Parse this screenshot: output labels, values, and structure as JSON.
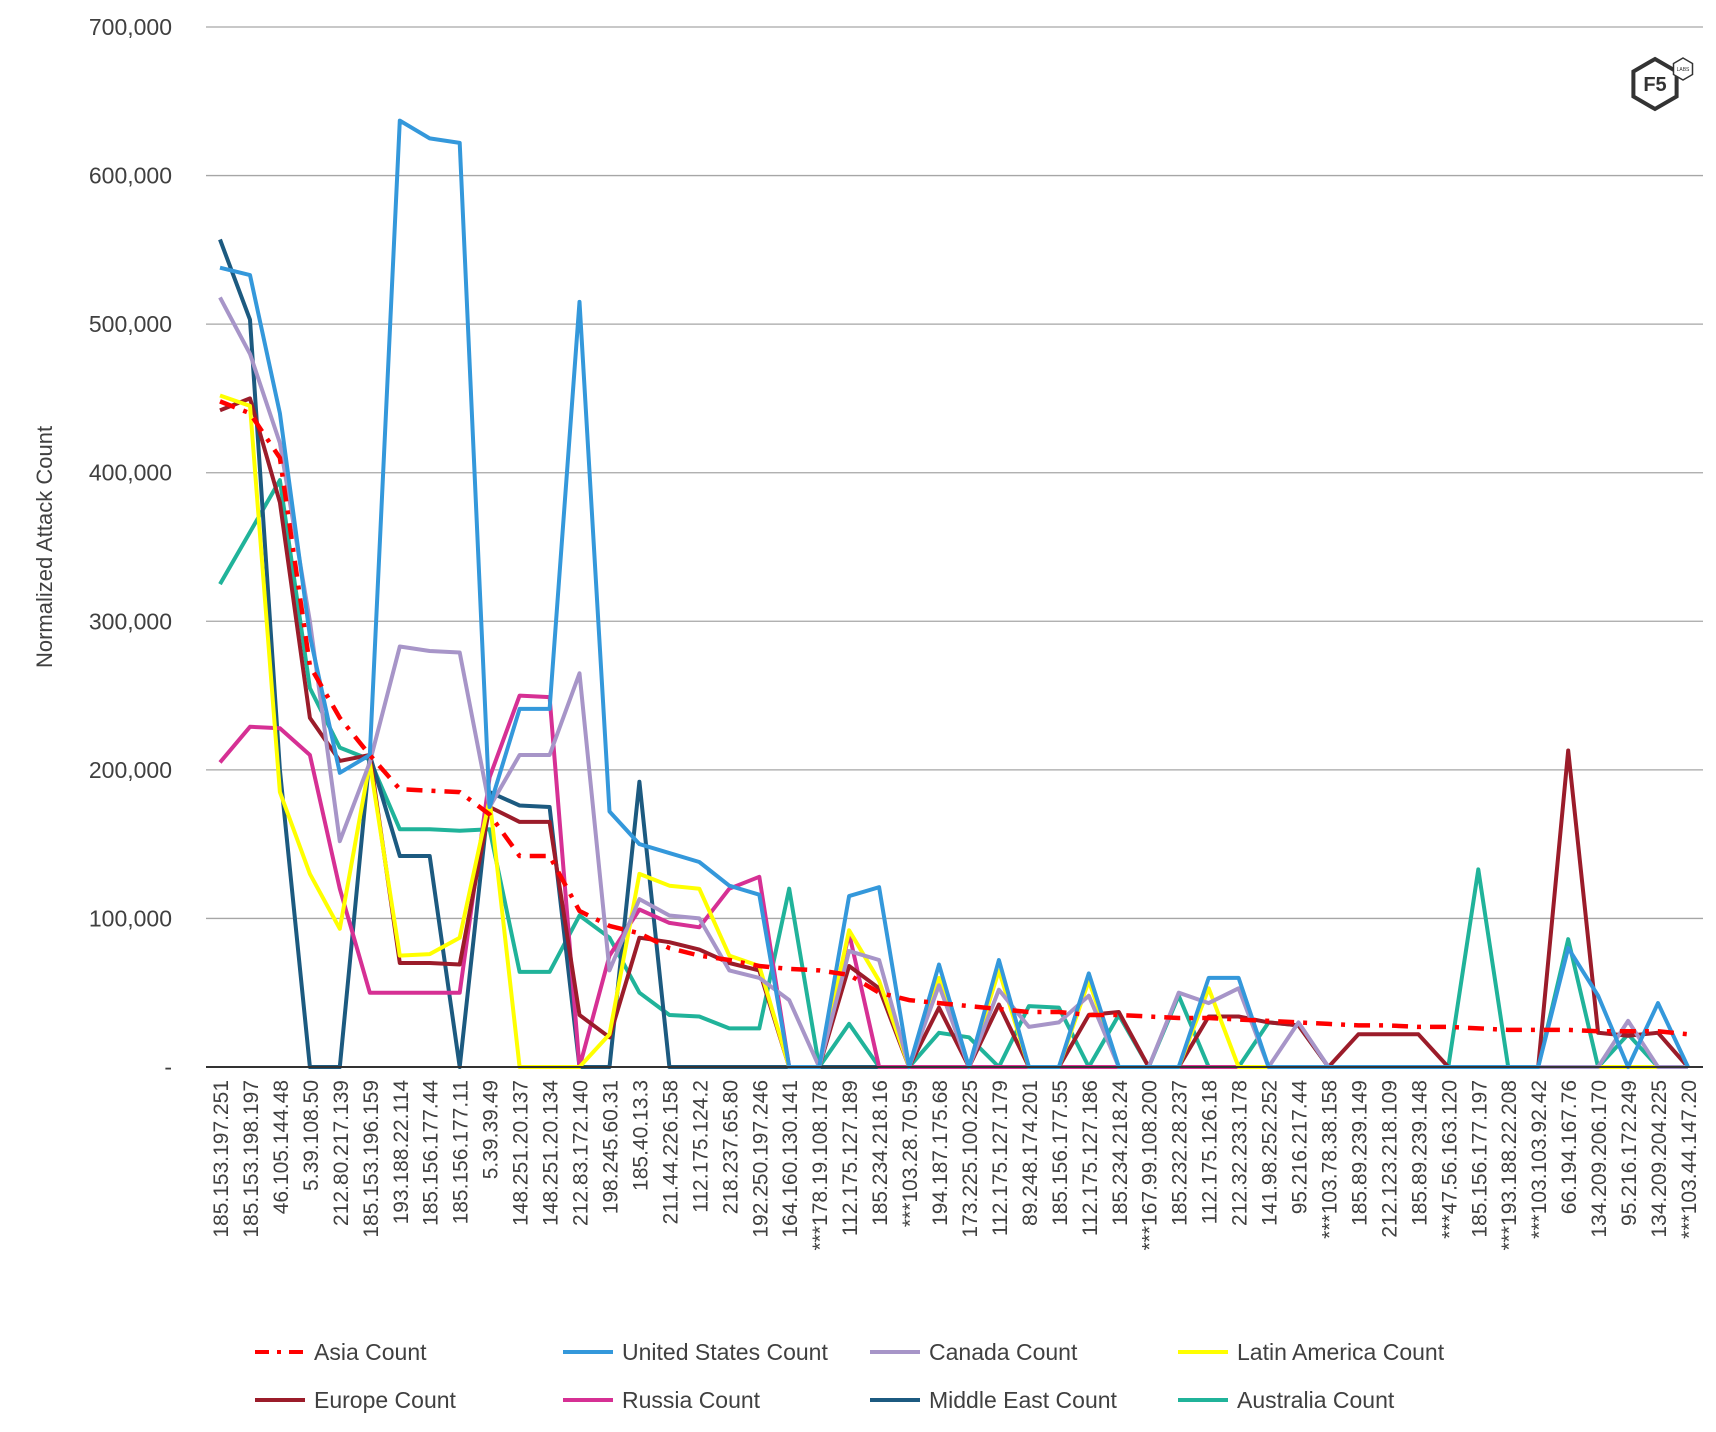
{
  "chart_data": {
    "type": "line",
    "title": "",
    "xlabel": "",
    "ylabel": "Normalized Attack Count",
    "ylim": [
      0,
      700000
    ],
    "yticks": [
      0,
      100000,
      200000,
      300000,
      400000,
      500000,
      600000,
      700000
    ],
    "ytick_labels": [
      "-",
      "100,000",
      "200,000",
      "300,000",
      "400,000",
      "500,000",
      "600,000",
      "700,000"
    ],
    "grid": true,
    "legend_position": "bottom",
    "categories": [
      "185.153.197.251",
      "185.153.198.197",
      "46.105.144.48",
      "5.39.108.50",
      "212.80.217.139",
      "185.153.196.159",
      "193.188.22.114",
      "185.156.177.44",
      "185.156.177.11",
      "5.39.39.49",
      "148.251.20.137",
      "148.251.20.134",
      "212.83.172.140",
      "198.245.60.31",
      "185.40.13.3",
      "211.44.226.158",
      "112.175.124.2",
      "218.237.65.80",
      "192.250.197.246",
      "164.160.130.141",
      "***178.19.108.178",
      "112.175.127.189",
      "185.234.218.16",
      "***103.28.70.59",
      "194.187.175.68",
      "173.225.100.225",
      "112.175.127.179",
      "89.248.174.201",
      "185.156.177.55",
      "112.175.127.186",
      "185.234.218.24",
      "***167.99.108.200",
      "185.232.28.237",
      "112.175.126.18",
      "212.32.233.178",
      "141.98.252.252",
      "95.216.217.44",
      "***103.78.38.158",
      "185.89.239.149",
      "212.123.218.109",
      "185.89.239.148",
      "***47.56.163.120",
      "185.156.177.197",
      "***193.188.22.208",
      "***103.103.92.42",
      "66.194.167.76",
      "134.209.206.170",
      "95.216.172.249",
      "134.209.204.225",
      "***103.44.147.20"
    ],
    "series": [
      {
        "name": "Asia Count",
        "color": "#ff0000",
        "dash": "dash-dot",
        "values": [
          448000,
          440000,
          410000,
          270000,
          235000,
          210000,
          187000,
          186000,
          185000,
          170000,
          142000,
          142000,
          105000,
          95000,
          90000,
          80000,
          75000,
          72000,
          68000,
          66000,
          65000,
          62000,
          50000,
          45000,
          43000,
          41000,
          39000,
          37000,
          37000,
          35000,
          35000,
          34000,
          33000,
          33000,
          32000,
          31000,
          30000,
          29000,
          28000,
          28000,
          27000,
          27000,
          26000,
          25000,
          25000,
          25000,
          24000,
          24000,
          24000,
          22000
        ]
      },
      {
        "name": "United States Count",
        "color": "#3498db",
        "values": [
          538000,
          533000,
          440000,
          290000,
          198000,
          210000,
          637000,
          625000,
          622000,
          175000,
          241000,
          241000,
          515000,
          172000,
          150000,
          144000,
          138000,
          122000,
          116000,
          0,
          0,
          115000,
          121000,
          0,
          69000,
          0,
          72000,
          0,
          0,
          63000,
          0,
          0,
          0,
          60000,
          60000,
          0,
          0,
          0,
          0,
          0,
          0,
          0,
          0,
          0,
          0,
          80000,
          48000,
          0,
          43000,
          0
        ]
      },
      {
        "name": "Canada Count",
        "color": "#a795c8",
        "values": [
          518000,
          480000,
          420000,
          300000,
          152000,
          205000,
          283000,
          280000,
          279000,
          175000,
          210000,
          210000,
          265000,
          65000,
          113000,
          102000,
          100000,
          65000,
          60000,
          45000,
          0,
          78000,
          72000,
          0,
          55000,
          0,
          52000,
          27000,
          30000,
          48000,
          0,
          0,
          50000,
          43000,
          53000,
          0,
          30000,
          0,
          0,
          0,
          0,
          0,
          0,
          0,
          0,
          0,
          0,
          31000,
          0,
          0
        ]
      },
      {
        "name": "Latin America Count",
        "color": "#ffff00",
        "values": [
          452000,
          445000,
          185000,
          130000,
          93000,
          205000,
          75000,
          76000,
          87000,
          180000,
          0,
          0,
          0,
          22000,
          130000,
          122000,
          120000,
          75000,
          68000,
          0,
          0,
          92000,
          58000,
          0,
          60000,
          0,
          65000,
          0,
          0,
          58000,
          0,
          0,
          0,
          53000,
          0,
          0,
          0,
          0,
          0,
          0,
          0,
          0,
          0,
          0,
          0,
          0,
          0,
          0,
          0,
          0
        ]
      },
      {
        "name": "Europe Count",
        "color": "#9b1c2a",
        "values": [
          442000,
          450000,
          380000,
          235000,
          206000,
          210000,
          70000,
          70000,
          69000,
          175000,
          165000,
          165000,
          35000,
          20000,
          87000,
          84000,
          79000,
          70000,
          65000,
          0,
          0,
          68000,
          53000,
          0,
          40000,
          0,
          42000,
          0,
          0,
          35000,
          37000,
          0,
          0,
          34000,
          34000,
          30000,
          28000,
          0,
          22000,
          22000,
          22000,
          0,
          0,
          0,
          0,
          213000,
          23000,
          21000,
          23000,
          0
        ]
      },
      {
        "name": "Russia Count",
        "color": "#d63094",
        "values": [
          205000,
          229000,
          228000,
          210000,
          120000,
          50000,
          50000,
          50000,
          50000,
          195000,
          250000,
          249000,
          0,
          75000,
          106000,
          97000,
          94000,
          120000,
          128000,
          0,
          0,
          90000,
          0,
          0,
          0,
          0,
          0,
          0,
          0,
          0,
          0,
          0,
          0,
          0,
          0,
          0,
          0,
          0,
          0,
          0,
          0,
          0,
          0,
          0,
          0,
          0,
          0,
          0,
          0,
          0
        ]
      },
      {
        "name": "Middle East Count",
        "color": "#1c5a80",
        "values": [
          557000,
          503000,
          200000,
          0,
          0,
          210000,
          142000,
          142000,
          0,
          185000,
          176000,
          175000,
          0,
          0,
          192000,
          0,
          0,
          0,
          0,
          0,
          0,
          0,
          0,
          0,
          0,
          0,
          0,
          0,
          0,
          0,
          0,
          0,
          0,
          0,
          0,
          0,
          0,
          0,
          0,
          0,
          0,
          0,
          0,
          0,
          0,
          0,
          0,
          0,
          0,
          0
        ]
      },
      {
        "name": "Australia Count",
        "color": "#20b39a",
        "values": [
          325000,
          360000,
          395000,
          255000,
          215000,
          207000,
          160000,
          160000,
          159000,
          160000,
          64000,
          64000,
          102000,
          87000,
          50000,
          35000,
          34000,
          26000,
          26000,
          120000,
          0,
          29000,
          0,
          0,
          23000,
          20000,
          0,
          41000,
          40000,
          0,
          35000,
          0,
          48000,
          0,
          0,
          30000,
          28000,
          0,
          0,
          0,
          0,
          0,
          133000,
          0,
          0,
          86000,
          0,
          22000,
          0,
          0
        ]
      }
    ]
  },
  "logo": {
    "text": "F5",
    "badge": "LABS"
  }
}
